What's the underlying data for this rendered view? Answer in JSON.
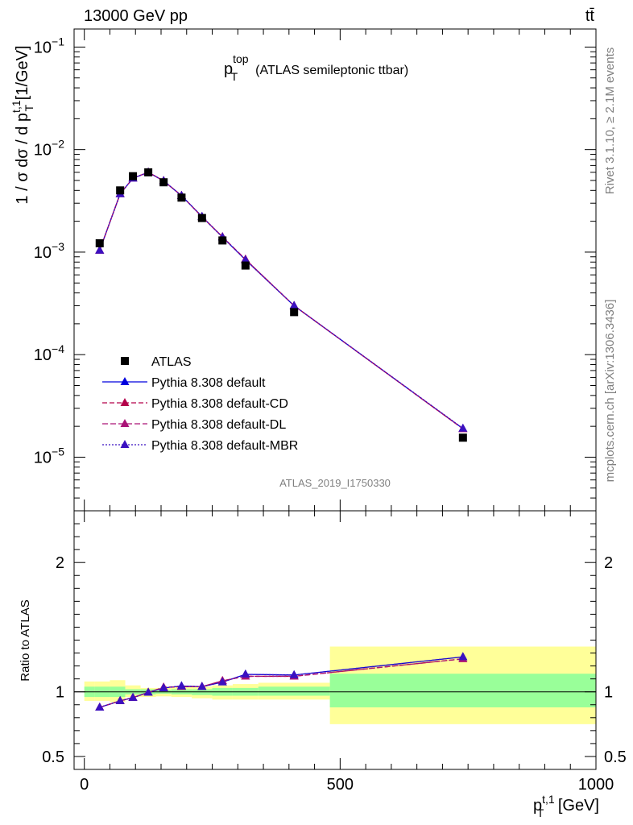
{
  "header": {
    "energy_label": "13000 GeV pp",
    "process_label": "tt̄"
  },
  "side_labels": {
    "rivet": "Rivet 3.1.10, ≥ 2.1M events",
    "mcplots": "mcplots.cern.ch [arXiv:1306.3436]"
  },
  "analysis_id": "ATLAS_2019_I1750330",
  "chart_data": [
    {
      "type": "line",
      "panel": "main",
      "title_main": "p",
      "title_sup": "top",
      "title_sub": "T",
      "title_suffix": "(ATLAS semileptonic ttbar)",
      "ylabel": "1 / σ dσ / d p_T^{t,1} [1/GeV]",
      "ylabel_parts": {
        "pre": "1 / σ dσ / d p",
        "sup": "t,1",
        "sub": "T",
        "post": " [1/GeV]"
      },
      "yscale": "log",
      "xlim": [
        -20,
        1000
      ],
      "ylim": [
        3e-06,
        0.15
      ],
      "y_tick_labels": [
        {
          "base": "10",
          "exp": "−1",
          "value": 0.1
        },
        {
          "base": "10",
          "exp": "−2",
          "value": 0.01
        },
        {
          "base": "10",
          "exp": "−3",
          "value": 0.001
        },
        {
          "base": "10",
          "exp": "−4",
          "value": 0.0001
        },
        {
          "base": "10",
          "exp": "−5",
          "value": 1e-05
        }
      ],
      "legend_position": "lower-left",
      "x": [
        30,
        70,
        95,
        125,
        155,
        190,
        230,
        270,
        315,
        410,
        740
      ],
      "data": {
        "name": "ATLAS",
        "values": [
          0.00122,
          0.004,
          0.0055,
          0.006,
          0.0048,
          0.0034,
          0.00215,
          0.0013,
          0.00074,
          0.00026,
          1.55e-05
        ]
      },
      "series": [
        {
          "name": "Pythia 8.308 default",
          "color": "#0000dd",
          "dash": "",
          "marker": "triangle",
          "values": [
            0.00104,
            0.0037,
            0.00525,
            0.006,
            0.00495,
            0.00355,
            0.00222,
            0.0014,
            0.00084,
            0.0003,
            1.9e-05
          ]
        },
        {
          "name": "Pythia 8.308 default-CD",
          "color": "#b4004a",
          "dash": "6,3",
          "marker": "triangle",
          "values": [
            0.00104,
            0.0037,
            0.00526,
            0.00602,
            0.00496,
            0.00356,
            0.00221,
            0.00141,
            0.00085,
            0.0003,
            1.89e-05
          ]
        },
        {
          "name": "Pythia 8.308 default-DL",
          "color": "#aa1477",
          "dash": "7,3",
          "marker": "triangle",
          "values": [
            0.00104,
            0.0037,
            0.00526,
            0.00601,
            0.00496,
            0.00355,
            0.00221,
            0.00141,
            0.00085,
            0.0003,
            1.89e-05
          ]
        },
        {
          "name": "Pythia 8.308 default-MBR",
          "color": "#3a10c0",
          "dash": "2,2",
          "marker": "triangle",
          "values": [
            0.00104,
            0.0037,
            0.00525,
            0.00601,
            0.00495,
            0.00355,
            0.00222,
            0.0014,
            0.00084,
            0.0003,
            1.91e-05
          ]
        }
      ]
    },
    {
      "type": "line",
      "panel": "ratio",
      "ylabel": "Ratio to ATLAS",
      "xlabel_parts": {
        "pre": "p",
        "sup": "t,1",
        "sub": "T",
        "post": " [GeV]"
      },
      "xlim": [
        -20,
        1000
      ],
      "ylim": [
        0.4,
        2.4
      ],
      "y_tick_labels": [
        {
          "label": "2",
          "value": 2
        },
        {
          "label": "1",
          "value": 1
        },
        {
          "label": "0.5",
          "value": 0.5
        }
      ],
      "x_tick_labels": [
        {
          "label": "0",
          "value": 0
        },
        {
          "label": "500",
          "value": 500
        },
        {
          "label": "1000",
          "value": 1000
        }
      ],
      "bins": [
        0,
        20,
        50,
        80,
        110,
        140,
        170,
        210,
        250,
        290,
        340,
        480,
        1000
      ],
      "band_yellow": [
        [
          0.93,
          1.08
        ],
        [
          0.93,
          1.08
        ],
        [
          0.92,
          1.09
        ],
        [
          0.96,
          1.05
        ],
        [
          0.96,
          1.03
        ],
        [
          0.965,
          1.03
        ],
        [
          0.96,
          1.04
        ],
        [
          0.95,
          1.04
        ],
        [
          0.94,
          1.05
        ],
        [
          0.94,
          1.06
        ],
        [
          0.94,
          1.07
        ],
        [
          0.75,
          1.35
        ]
      ],
      "band_green": [
        [
          0.96,
          1.04
        ],
        [
          0.96,
          1.04
        ],
        [
          0.96,
          1.04
        ],
        [
          0.98,
          1.02
        ],
        [
          0.98,
          1.02
        ],
        [
          0.985,
          1.015
        ],
        [
          0.98,
          1.02
        ],
        [
          0.975,
          1.02
        ],
        [
          0.97,
          1.03
        ],
        [
          0.97,
          1.03
        ],
        [
          0.97,
          1.04
        ],
        [
          0.88,
          1.14
        ]
      ],
      "x": [
        30,
        70,
        95,
        125,
        155,
        190,
        230,
        270,
        315,
        410,
        740
      ],
      "series": [
        {
          "name": "Pythia 8.308 default",
          "color": "#0000dd",
          "dash": "",
          "values": [
            0.88,
            0.93,
            0.955,
            0.995,
            1.03,
            1.045,
            1.04,
            1.075,
            1.135,
            1.13,
            1.27
          ]
        },
        {
          "name": "Pythia 8.308 default-CD",
          "color": "#b4004a",
          "dash": "6,3",
          "values": [
            0.88,
            0.93,
            0.955,
            0.995,
            1.035,
            1.04,
            1.04,
            1.085,
            1.12,
            1.12,
            1.255
          ]
        },
        {
          "name": "Pythia 8.308 default-DL",
          "color": "#aa1477",
          "dash": "7,3",
          "values": [
            0.88,
            0.93,
            0.955,
            0.995,
            1.035,
            1.04,
            1.04,
            1.085,
            1.12,
            1.12,
            1.255
          ]
        },
        {
          "name": "Pythia 8.308 default-MBR",
          "color": "#3a10c0",
          "dash": "2,2",
          "values": [
            0.88,
            0.93,
            0.955,
            0.995,
            1.03,
            1.045,
            1.04,
            1.075,
            1.135,
            1.13,
            1.27
          ]
        }
      ]
    }
  ]
}
